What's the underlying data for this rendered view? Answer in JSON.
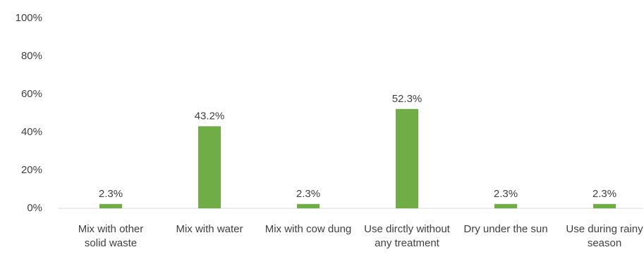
{
  "chart_data": {
    "type": "bar",
    "categories": [
      "Mix with other solid waste",
      "Mix with water",
      "Mix with cow dung",
      "Use dirctly without any treatment",
      "Dry under the sun",
      "Use during rainy season"
    ],
    "values": [
      2.3,
      43.2,
      2.3,
      52.3,
      2.3,
      2.3
    ],
    "value_labels": [
      "2.3%",
      "43.2%",
      "2.3%",
      "52.3%",
      "2.3%",
      "2.3%"
    ],
    "color": "#70ad47",
    "ylim": [
      0,
      100
    ],
    "yticks": [
      {
        "value": 0,
        "label": "0%"
      },
      {
        "value": 20,
        "label": "20%"
      },
      {
        "value": 40,
        "label": "40%"
      },
      {
        "value": 60,
        "label": "60%"
      },
      {
        "value": 80,
        "label": "80%"
      },
      {
        "value": 100,
        "label": "100%"
      }
    ],
    "grid": false
  }
}
